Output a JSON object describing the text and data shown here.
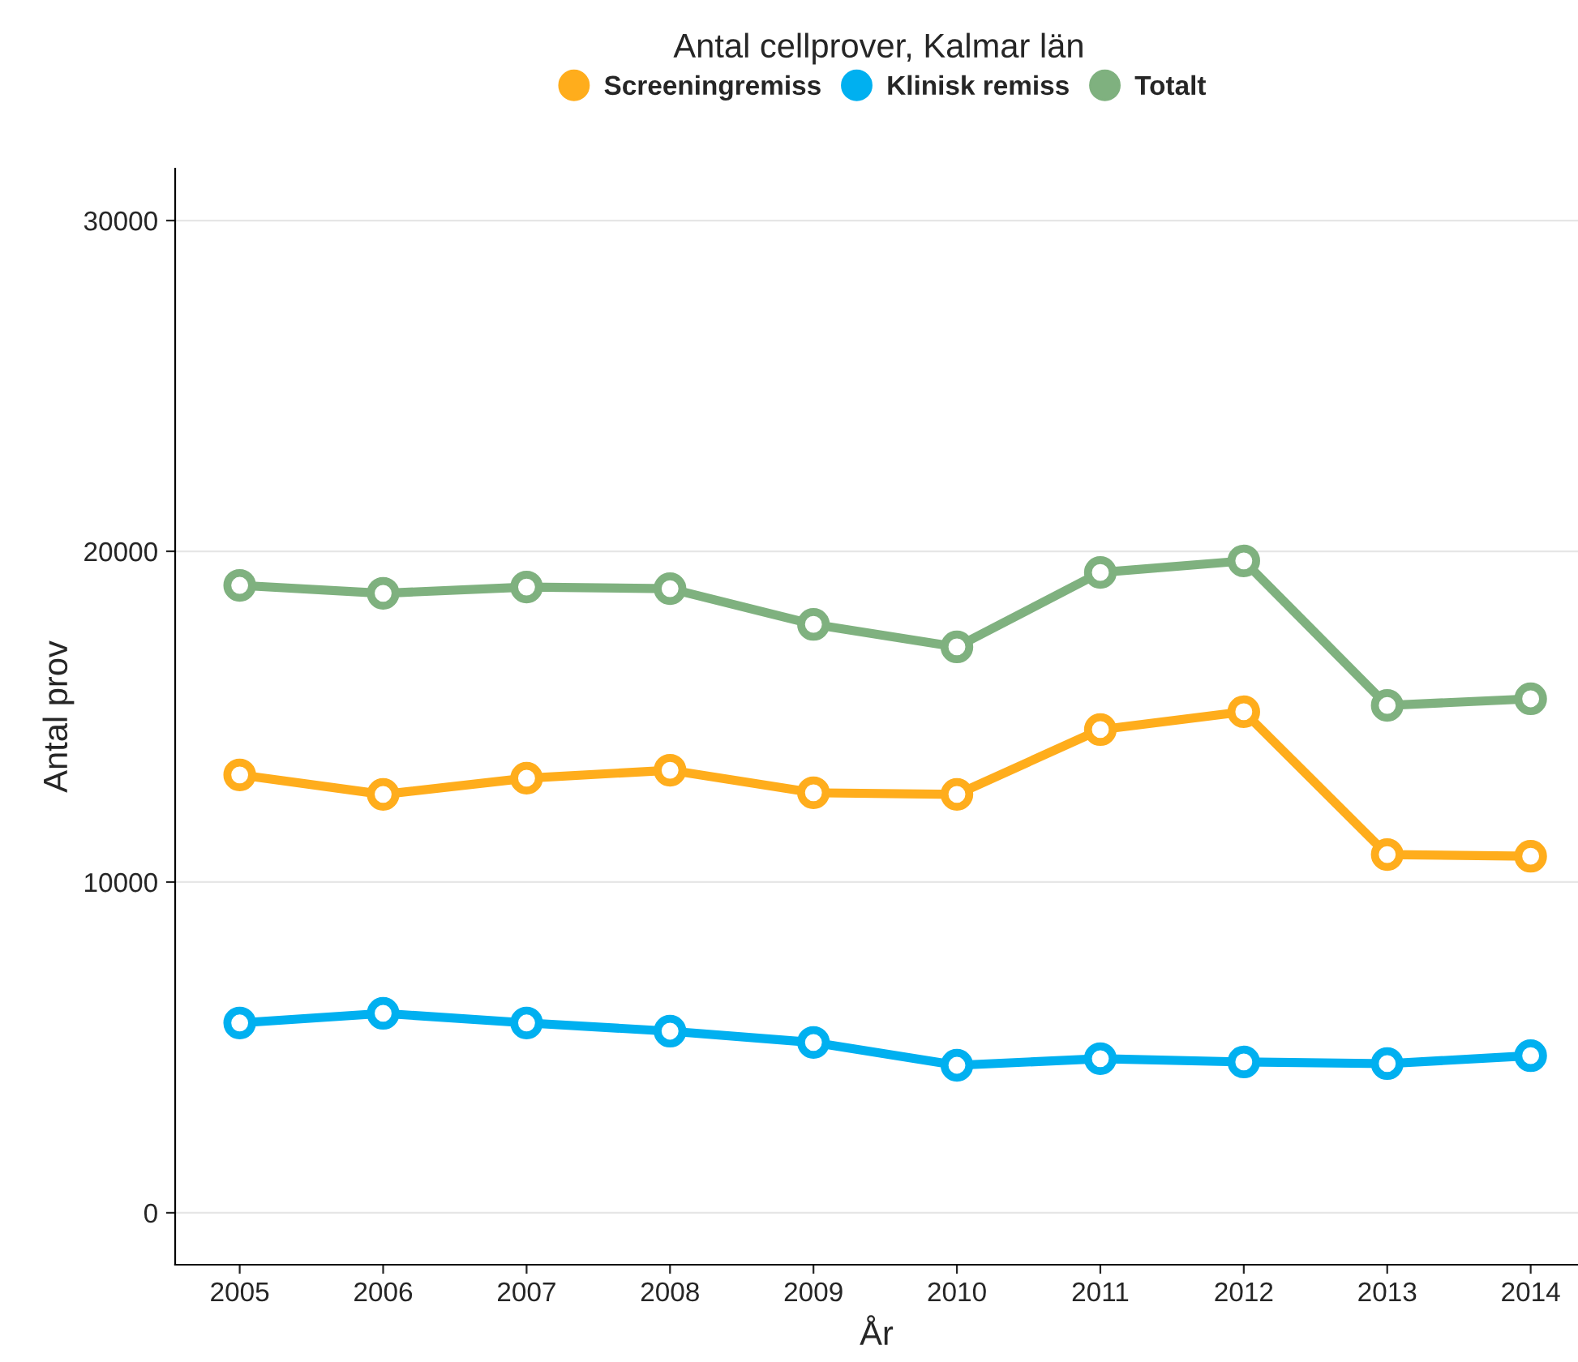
{
  "chart_data": {
    "type": "line",
    "title": "Antal cellprover, Kalmar län",
    "xlabel": "År",
    "ylabel": "Antal prov",
    "x": [
      2005,
      2006,
      2007,
      2008,
      2009,
      2010,
      2011,
      2012,
      2013,
      2014
    ],
    "series": [
      {
        "name": "Screeningremiss",
        "color": "#ffad1c",
        "values": [
          13240,
          12650,
          13140,
          13380,
          12700,
          12650,
          14610,
          15150,
          10830,
          10780
        ]
      },
      {
        "name": "Klinisk remiss",
        "color": "#00b0f0",
        "values": [
          5740,
          6030,
          5740,
          5490,
          5150,
          4460,
          4660,
          4560,
          4510,
          4750
        ]
      },
      {
        "name": "Totalt",
        "color": "#7fb17f",
        "values": [
          18970,
          18730,
          18920,
          18870,
          17790,
          17110,
          19360,
          19710,
          15340,
          15540
        ]
      }
    ],
    "xlim": [
      2004.55,
      2014.33
    ],
    "xticks": [
      2005,
      2006,
      2007,
      2008,
      2009,
      2010,
      2011,
      2012,
      2013,
      2014
    ],
    "ylim": [
      -1570,
      31570
    ],
    "yticks": [
      0,
      10000,
      20000,
      30000
    ],
    "grid": "y",
    "legend": "top",
    "marker": "circle",
    "line_style": "solid"
  }
}
